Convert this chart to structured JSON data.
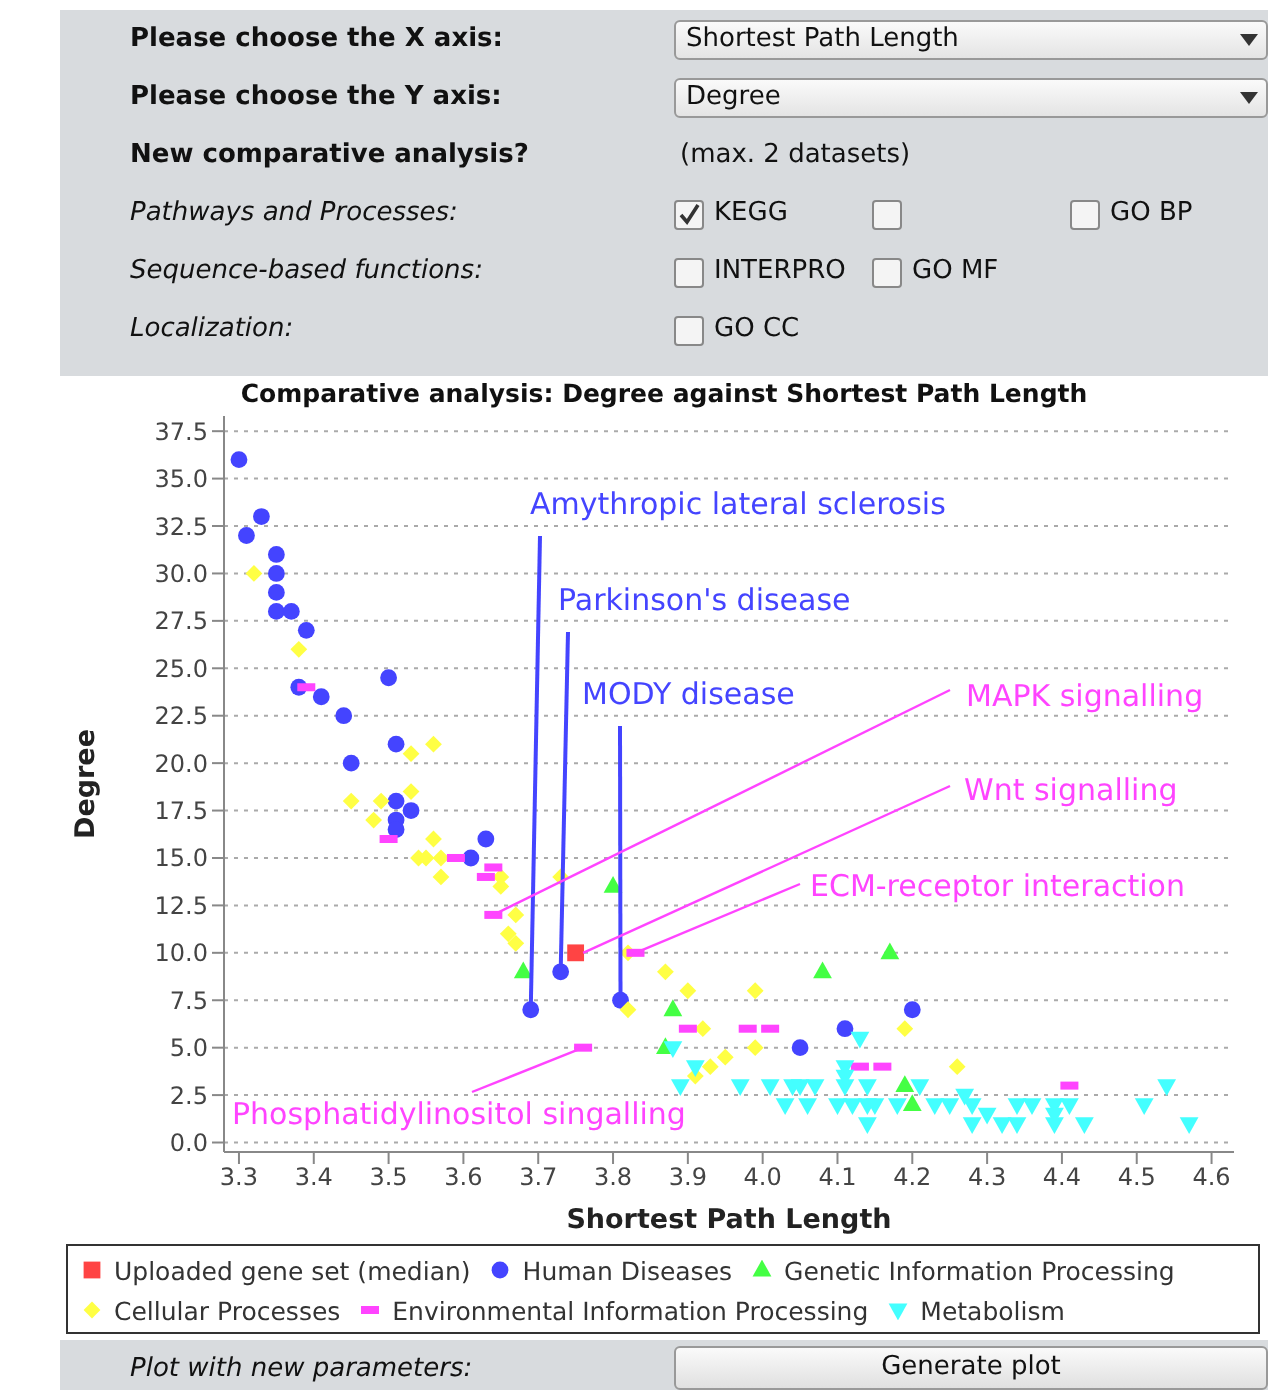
{
  "chart_data": {
    "type": "scatter",
    "title": "Comparative analysis: Degree against Shortest Path Length",
    "xlabel": "Shortest Path Length",
    "ylabel": "Degree",
    "xlim": [
      3.28,
      4.63
    ],
    "ylim": [
      -0.5,
      38.3
    ],
    "xticks": [
      3.3,
      3.4,
      3.5,
      3.6,
      3.7,
      3.8,
      3.9,
      {
        "value": 4,
        "label": "4.0"
      },
      4.1,
      4.2,
      4.3,
      4.4,
      4.5,
      4.6
    ],
    "yticks": [
      {
        "value": 0,
        "label": "0.0"
      },
      {
        "value": 2.5,
        "label": "2.5"
      },
      {
        "value": 5,
        "label": "5.0"
      },
      {
        "value": 7.5,
        "label": "7.5"
      },
      {
        "value": 10,
        "label": "10.0"
      },
      {
        "value": 12.5,
        "label": "12.5"
      },
      {
        "value": 15,
        "label": "15.0"
      },
      {
        "value": 17.5,
        "label": "17.5"
      },
      {
        "value": 20,
        "label": "20.0"
      },
      {
        "value": 22.5,
        "label": "22.5"
      },
      {
        "value": 25,
        "label": "25.0"
      },
      {
        "value": 27.5,
        "label": "27.5"
      },
      {
        "value": 30,
        "label": "30.0"
      },
      {
        "value": 32.5,
        "label": "32.5"
      },
      {
        "value": 35,
        "label": "35.0"
      },
      {
        "value": 37.5,
        "label": "37.5"
      }
    ],
    "grid": "y",
    "legend": "bottom",
    "series": [
      {
        "name": "Uploaded gene set (median)",
        "color": "#ff4444",
        "marker": "square",
        "x": [
          3.75
        ],
        "values": [
          10
        ]
      },
      {
        "name": "Human Diseases",
        "color": "#4444ff",
        "marker": "circle",
        "x": [
          3.3,
          3.31,
          3.33,
          3.35,
          3.35,
          3.35,
          3.35,
          3.37,
          3.39,
          3.38,
          3.41,
          3.44,
          3.45,
          3.5,
          3.51,
          3.51,
          3.51,
          3.51,
          3.53,
          3.61,
          3.63,
          3.69,
          3.73,
          3.81,
          4.05,
          4.11,
          4.2
        ],
        "values": [
          36,
          32,
          33,
          31,
          30,
          29,
          28,
          28,
          27,
          24,
          23.5,
          22.5,
          20,
          24.5,
          21,
          18,
          17,
          16.5,
          17.5,
          15,
          16,
          7,
          9,
          7.5,
          5,
          6,
          7
        ]
      },
      {
        "name": "Genetic Information Processing",
        "color": "#44ff44",
        "marker": "triangle",
        "x": [
          3.68,
          3.8,
          3.88,
          3.87,
          4.08,
          4.17,
          4.19,
          4.2
        ],
        "values": [
          9,
          13.5,
          7,
          5,
          9,
          10,
          3,
          2
        ]
      },
      {
        "name": "Cellular Processes",
        "color": "#ffff44",
        "marker": "diamond",
        "x": [
          3.32,
          3.38,
          3.53,
          3.56,
          3.45,
          3.49,
          3.48,
          3.53,
          3.56,
          3.54,
          3.55,
          3.57,
          3.57,
          3.65,
          3.65,
          3.67,
          3.66,
          3.67,
          3.73,
          3.82,
          3.87,
          3.9,
          3.99,
          3.82,
          3.92,
          3.99,
          3.93,
          3.95,
          3.91,
          4.19,
          4.26
        ],
        "values": [
          30,
          26,
          20.5,
          21,
          18,
          18,
          17,
          18.5,
          16,
          15,
          15,
          15,
          14,
          14,
          13.5,
          12,
          11,
          10.5,
          14,
          10,
          9,
          8,
          8,
          7,
          6,
          5,
          4,
          4.5,
          3.5,
          6,
          4
        ]
      },
      {
        "name": "Environmental Information Processing",
        "color": "#ff44ff",
        "x": [
          3.39,
          3.5,
          3.59,
          3.64,
          3.63,
          3.64,
          3.83,
          3.76,
          3.9,
          3.98,
          4.01,
          4.13,
          4.16,
          4.41
        ],
        "values": [
          24,
          16,
          15,
          14.5,
          14,
          12,
          10,
          5,
          6,
          6,
          6,
          4,
          4,
          3
        ]
      },
      {
        "name": "Metabolism",
        "color": "#44ffff",
        "marker": "triangle-down",
        "x": [
          3.88,
          3.91,
          3.89,
          3.97,
          4.01,
          4.04,
          4.05,
          4.07,
          4.03,
          4.06,
          4.11,
          4.11,
          4.13,
          4.1,
          4.12,
          4.14,
          4.15,
          4.18,
          4.14,
          4.14,
          4.11,
          4.21,
          4.23,
          4.25,
          4.27,
          4.28,
          4.28,
          4.3,
          4.32,
          4.34,
          4.34,
          4.36,
          4.39,
          4.39,
          4.39,
          4.41,
          4.43,
          4.51,
          4.54,
          4.57
        ],
        "values": [
          5,
          4,
          3,
          3,
          3,
          3,
          3,
          3,
          2,
          2,
          4,
          3,
          5.5,
          2,
          2,
          2,
          2,
          2,
          1,
          3,
          3.5,
          3,
          2,
          2,
          2.5,
          2,
          1,
          1.5,
          1,
          2,
          1,
          2,
          2,
          1.5,
          1,
          2,
          1,
          2,
          3,
          1
        ]
      }
    ],
    "annotations": [
      "Please choose the X axis:",
      "Shortest Path Length",
      "Please choose the Y axis:",
      "Degree",
      "New comparative analysis?",
      "(max. 2 datasets)",
      "Pathways and Processes:",
      "KEGG",
      "GO BP",
      "Sequence-based functions:",
      "INTERPRO",
      "GO MF",
      "Localization:",
      "GO CC",
      "Plot with new parameters:",
      "Generate plot",
      {
        "text": "Amythropic lateral sclerosis",
        "x": 3.69,
        "y": 7
      },
      {
        "text": "Parkinson's disease",
        "x": 3.73,
        "y": 9
      },
      {
        "text": "MODY disease",
        "x": 3.81,
        "y": 7.5
      },
      {
        "text": "MAPK signalling",
        "x": 3.64,
        "y": 12
      },
      {
        "text": "Wnt signalling",
        "x": 3.76,
        "y": 10
      },
      {
        "text": "ECM-receptor interaction",
        "x": 3.83,
        "y": 10
      },
      {
        "text": "Phosphatidylinositol singalling",
        "x": 3.76,
        "y": 5
      }
    ]
  }
}
